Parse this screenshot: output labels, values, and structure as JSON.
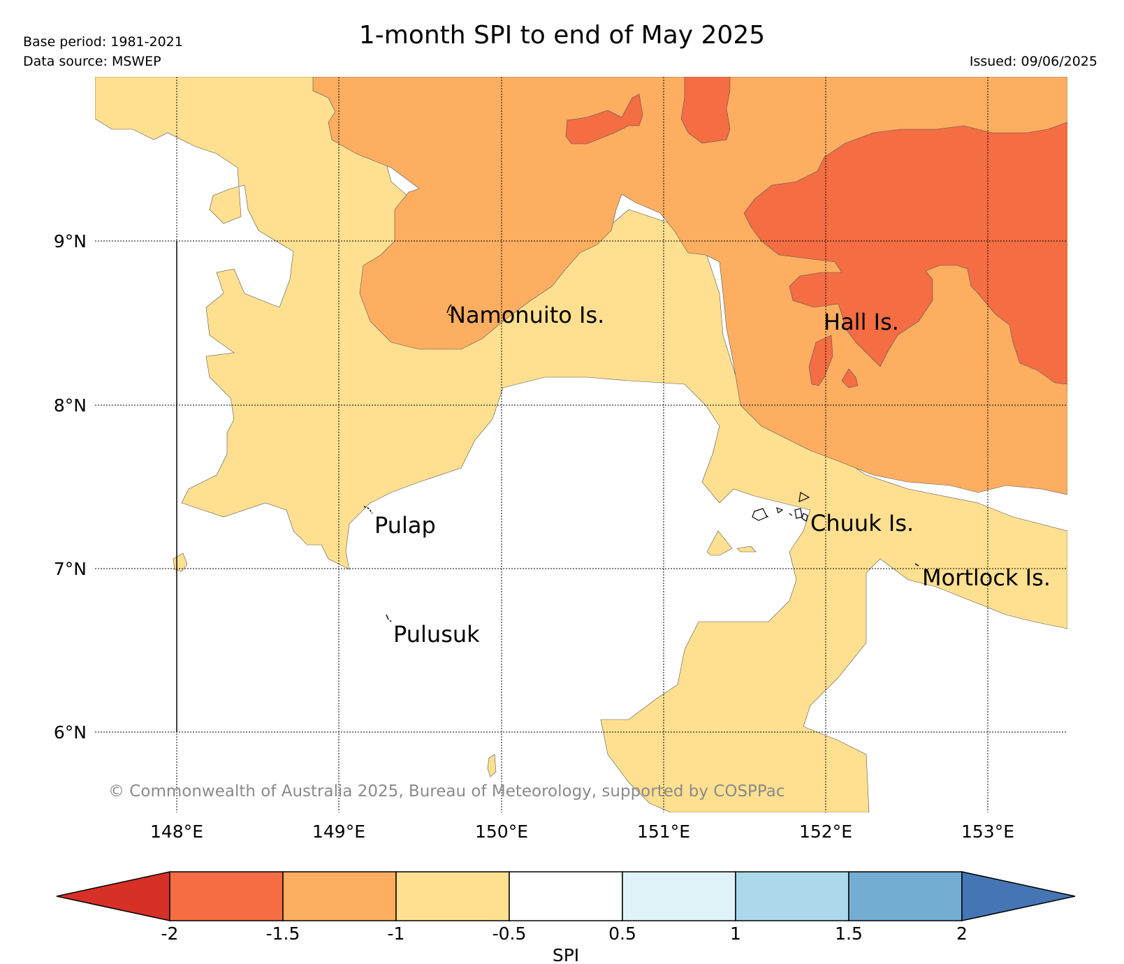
{
  "header": {
    "base_period": "Base period: 1981-2021",
    "data_source": "Data source: MSWEP",
    "issued": "Issued: 09/06/2025",
    "title": "1-month SPI to end of May 2025"
  },
  "map": {
    "lat_labels": [
      "9°N",
      "8°N",
      "7°N",
      "6°N"
    ],
    "lon_labels": [
      "148°E",
      "149°E",
      "150°E",
      "151°E",
      "152°E",
      "153°E"
    ],
    "places": {
      "namonuito": "Namonuito Is.",
      "hall": "Hall Is.",
      "pulap": "Pulap",
      "chuuk": "Chuuk Is.",
      "mortlock": "Mortlock Is.",
      "pulusuk": "Pulusuk"
    },
    "copyright": "© Commonwealth of Australia 2025, Bureau of Meteorology, supported by COSPPac"
  },
  "colorbar": {
    "label": "SPI",
    "ticks": [
      "-2",
      "-1.5",
      "-1",
      "-0.5",
      "0.5",
      "1",
      "1.5",
      "2"
    ],
    "colors": {
      "below_-2": "#d73027",
      "-2_to_-1.5": "#f46d43",
      "-1.5_to_-1": "#fdae61",
      "-1_to_-0.5": "#fee090",
      "-0.5_to_0.5": "#ffffff",
      "0.5_to_1": "#e0f3f8",
      "1_to_1.5": "#abd9e9",
      "1.5_to_2": "#74add1",
      "above_2": "#4575b4"
    }
  }
}
